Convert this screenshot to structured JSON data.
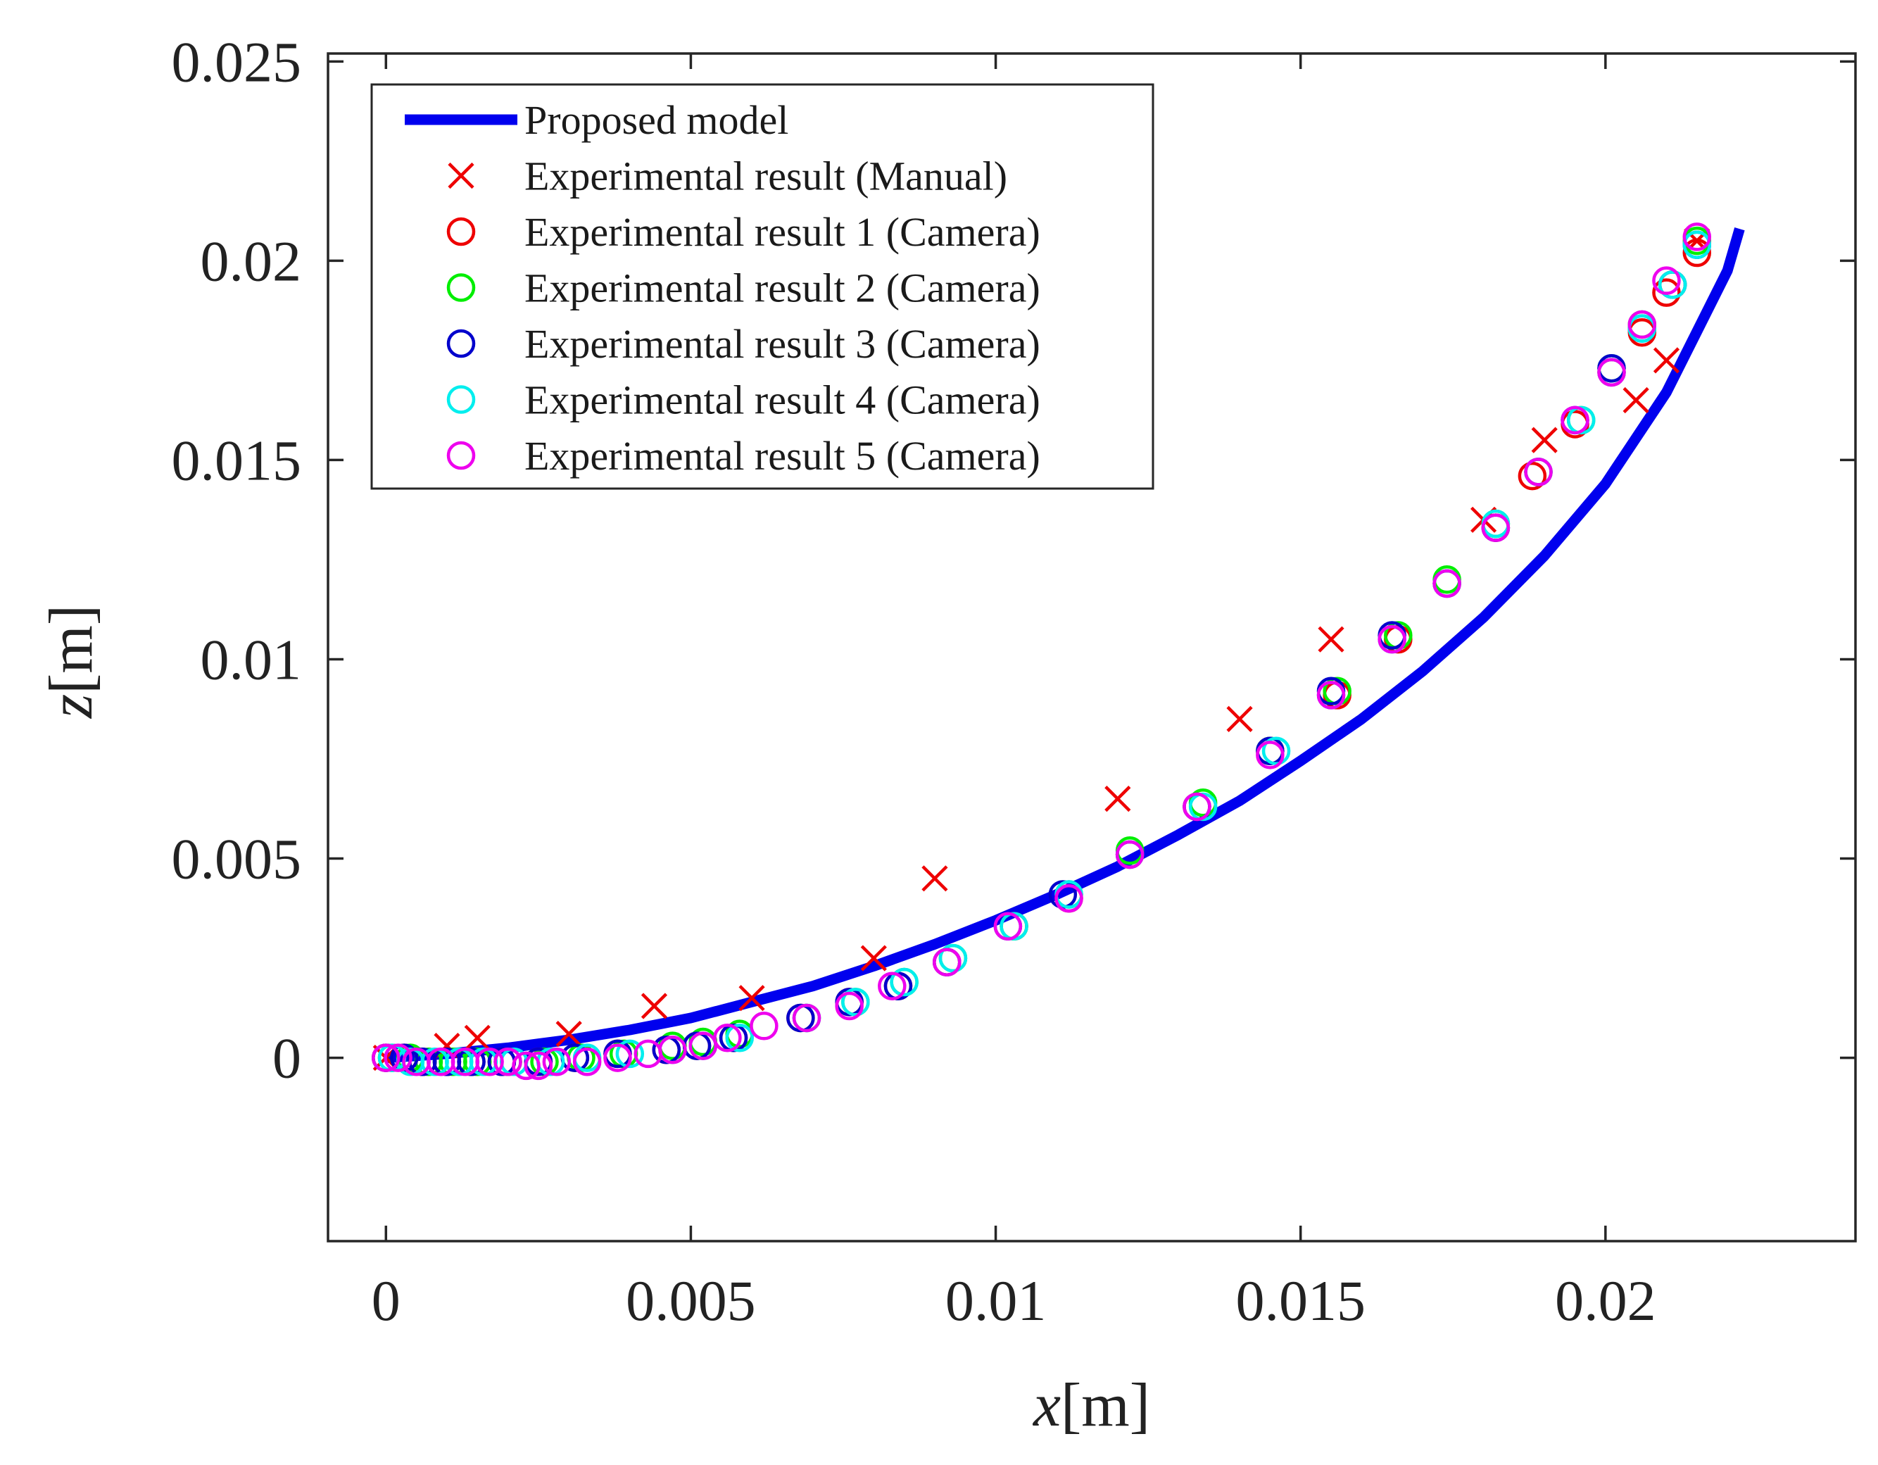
{
  "chart_data": {
    "type": "scatter",
    "title": "",
    "xlabel": "x[m]",
    "ylabel": "z[m]",
    "xlim": [
      -0.00095,
      0.0241
    ],
    "ylim": [
      -0.0046,
      0.0252
    ],
    "xticks": [
      0,
      0.005,
      0.01,
      0.015,
      0.02
    ],
    "xtick_labels": [
      "0",
      "0.005",
      "0.01",
      "0.015",
      "0.02"
    ],
    "yticks": [
      0,
      0.005,
      0.01,
      0.015,
      0.02,
      0.025
    ],
    "ytick_labels": [
      "0",
      "0.005",
      "0.01",
      "0.015",
      "0.02",
      "0.025"
    ],
    "grid": false,
    "legend_position": "top-left",
    "series": [
      {
        "name": "Proposed model",
        "kind": "line",
        "color": "#0000ee",
        "x": [
          0,
          0.001,
          0.002,
          0.003,
          0.004,
          0.005,
          0.006,
          0.007,
          0.008,
          0.009,
          0.01,
          0.011,
          0.012,
          0.013,
          0.014,
          0.015,
          0.016,
          0.017,
          0.018,
          0.019,
          0.02,
          0.021,
          0.022,
          0.0222
        ],
        "y": [
          0,
          0.0001,
          0.00025,
          0.00045,
          0.0007,
          0.001,
          0.0014,
          0.0018,
          0.0023,
          0.00285,
          0.00345,
          0.0041,
          0.0048,
          0.0056,
          0.00645,
          0.00745,
          0.0085,
          0.0097,
          0.01105,
          0.0126,
          0.0144,
          0.0167,
          0.01975,
          0.0208
        ]
      },
      {
        "name": "Experimental result (Manual)",
        "kind": "marker-x",
        "color": "#ee0000",
        "x": [
          0,
          0.001,
          0.0015,
          0.003,
          0.0044,
          0.006,
          0.008,
          0.009,
          0.012,
          0.014,
          0.0155,
          0.018,
          0.019,
          0.0205,
          0.021,
          0.0215
        ],
        "y": [
          0,
          0.0003,
          0.0005,
          0.0006,
          0.0013,
          0.0015,
          0.0025,
          0.0045,
          0.0065,
          0.0085,
          0.0105,
          0.0135,
          0.0155,
          0.0165,
          0.0175,
          0.0205
        ]
      },
      {
        "name": "Experimental result 1 (Camera)",
        "kind": "marker-o",
        "color": "#ee0000",
        "x": [
          0,
          0.0003,
          0.0006,
          0.001,
          0.0014,
          0.0019,
          0.0025,
          0.0031,
          0.0038,
          0.0046,
          0.0051,
          0.0057,
          0.0068,
          0.0076,
          0.0084,
          0.0092,
          0.0103,
          0.0112,
          0.0122,
          0.0133,
          0.0145,
          0.0156,
          0.0166,
          0.0174,
          0.0182,
          0.0188,
          0.0195,
          0.0201,
          0.0206,
          0.021,
          0.0215
        ],
        "y": [
          0,
          0,
          -0.0001,
          -0.0001,
          -0.0001,
          -0.0001,
          -0.0001,
          0,
          0.0001,
          0.0002,
          0.0003,
          0.0005,
          0.001,
          0.0014,
          0.0018,
          0.0024,
          0.0033,
          0.004,
          0.0051,
          0.0063,
          0.0077,
          0.0091,
          0.0105,
          0.0119,
          0.0133,
          0.0146,
          0.0159,
          0.0172,
          0.0182,
          0.0192,
          0.0202
        ]
      },
      {
        "name": "Experimental result 2 (Camera)",
        "kind": "marker-o",
        "color": "#00ee00",
        "x": [
          0.0001,
          0.0004,
          0.0007,
          0.0011,
          0.0015,
          0.002,
          0.0026,
          0.0032,
          0.0039,
          0.0047,
          0.0052,
          0.0058,
          0.0069,
          0.0077,
          0.0085,
          0.0093,
          0.0103,
          0.0112,
          0.0122,
          0.0134,
          0.0145,
          0.0156,
          0.0166,
          0.0174,
          0.0182,
          0.0189,
          0.0196,
          0.0201,
          0.0206,
          0.0211,
          0.0215
        ],
        "y": [
          0,
          0,
          -0.0001,
          -0.0001,
          -0.0001,
          -0.0001,
          -0.0001,
          0,
          0.0001,
          0.0003,
          0.0004,
          0.0006,
          0.001,
          0.0014,
          0.0019,
          0.0025,
          0.0033,
          0.0041,
          0.0052,
          0.0064,
          0.0077,
          0.0092,
          0.0106,
          0.012,
          0.0134,
          0.0147,
          0.016,
          0.0173,
          0.0184,
          0.0194,
          0.0205
        ]
      },
      {
        "name": "Experimental result 3 (Camera)",
        "kind": "marker-o",
        "color": "#0000cc",
        "x": [
          0,
          0.0003,
          0.0006,
          0.001,
          0.0014,
          0.0019,
          0.0025,
          0.0031,
          0.0038,
          0.0046,
          0.0051,
          0.0057,
          0.0068,
          0.0076,
          0.0084,
          0.0092,
          0.0102,
          0.0111,
          0.0122,
          0.0133,
          0.0145,
          0.0155,
          0.0165,
          0.0174,
          0.0182,
          0.0189,
          0.0195,
          0.0201,
          0.0206,
          0.0211,
          0.0215
        ],
        "y": [
          0,
          0,
          -0.0001,
          -0.0001,
          -0.0001,
          -0.0001,
          -0.0001,
          0,
          0.0001,
          0.0002,
          0.0003,
          0.0005,
          0.001,
          0.0014,
          0.0018,
          0.0024,
          0.0033,
          0.0041,
          0.0051,
          0.0063,
          0.0077,
          0.0092,
          0.0106,
          0.0119,
          0.0133,
          0.0147,
          0.016,
          0.0173,
          0.0183,
          0.0194,
          0.0204
        ]
      },
      {
        "name": "Experimental result 4 (Camera)",
        "kind": "marker-o",
        "color": "#00eeee",
        "x": [
          0.0001,
          0.0004,
          0.0008,
          0.0012,
          0.0016,
          0.0021,
          0.0027,
          0.0033,
          0.004,
          0.0047,
          0.0052,
          0.0058,
          0.0069,
          0.0077,
          0.0085,
          0.0093,
          0.0103,
          0.0112,
          0.0122,
          0.0134,
          0.0146,
          0.0155,
          0.0165,
          0.0174,
          0.0182,
          0.0189,
          0.0196,
          0.0201,
          0.0206,
          0.0211,
          0.0215
        ],
        "y": [
          0,
          -0.0001,
          -0.0001,
          -0.0001,
          -0.0001,
          -0.0001,
          -0.0001,
          0,
          0.0001,
          0.0002,
          0.0003,
          0.0005,
          0.001,
          0.0014,
          0.0019,
          0.0025,
          0.0033,
          0.0041,
          0.0051,
          0.0063,
          0.0077,
          0.0091,
          0.0105,
          0.0119,
          0.0134,
          0.0147,
          0.016,
          0.0172,
          0.0183,
          0.0194,
          0.0204
        ]
      },
      {
        "name": "Experimental result 5 (Camera)",
        "kind": "marker-o",
        "color": "#ee00ee",
        "x": [
          0,
          0.0002,
          0.0005,
          0.0009,
          0.0013,
          0.0017,
          0.002,
          0.0023,
          0.0025,
          0.0028,
          0.0033,
          0.0038,
          0.0043,
          0.0047,
          0.0052,
          0.0056,
          0.0062,
          0.0069,
          0.0076,
          0.0083,
          0.0092,
          0.0102,
          0.0112,
          0.0122,
          0.0133,
          0.0145,
          0.0155,
          0.0165,
          0.0174,
          0.0182,
          0.0189,
          0.0195,
          0.0201,
          0.0206,
          0.021,
          0.0215
        ],
        "y": [
          0,
          0,
          -0.0001,
          -0.0001,
          -0.0001,
          -0.0001,
          -0.0001,
          -0.0002,
          -0.0002,
          -0.0001,
          -0.0001,
          0,
          0.0001,
          0.0002,
          0.0003,
          0.0005,
          0.0008,
          0.001,
          0.0013,
          0.0018,
          0.0024,
          0.0033,
          0.004,
          0.0051,
          0.0063,
          0.0076,
          0.0091,
          0.0105,
          0.0119,
          0.0133,
          0.0147,
          0.016,
          0.0172,
          0.0184,
          0.0195,
          0.0206
        ]
      }
    ]
  }
}
